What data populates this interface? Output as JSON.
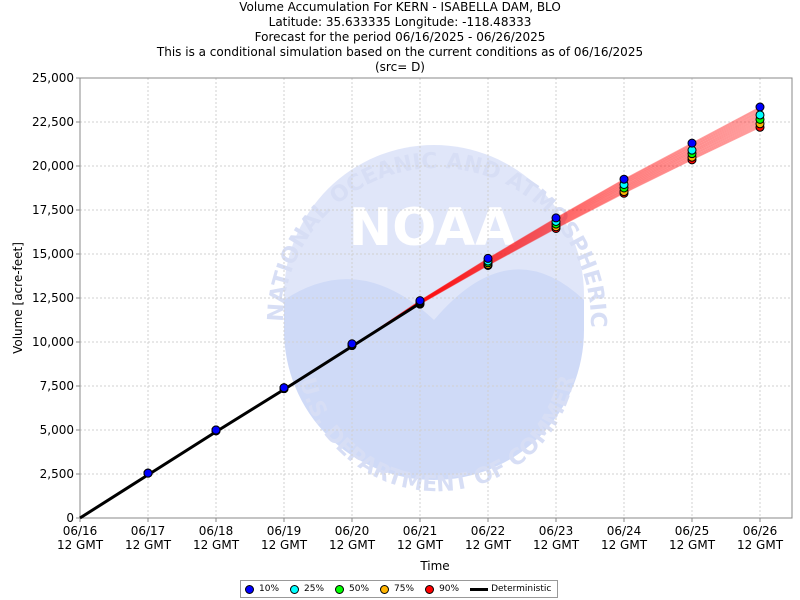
{
  "titles": {
    "line1": "Volume Accumulation For KERN - ISABELLA DAM, BLO",
    "line2": "Latitude: 35.633335 Longitude: -118.48333",
    "line3": "Forecast for the period 06/16/2025 - 06/26/2025",
    "line4": "This is a conditional simulation based on the current conditions as of 06/16/2025",
    "line5": "(src= D)"
  },
  "watermark": {
    "center_text": "NOAA",
    "ring_top": "NATIONAL OCEANIC AND ATMOSPHERIC ADMINISTRATION",
    "ring_bottom": "U.S. DEPARTMENT OF COMMERCE"
  },
  "legend": [
    {
      "label": "10%",
      "color": "#0000ff",
      "kind": "dot"
    },
    {
      "label": "25%",
      "color": "#00ffff",
      "kind": "dot"
    },
    {
      "label": "50%",
      "color": "#00ff00",
      "kind": "dot"
    },
    {
      "label": "75%",
      "color": "#ffb400",
      "kind": "dot"
    },
    {
      "label": "90%",
      "color": "#ff0000",
      "kind": "dot"
    },
    {
      "label": "Deterministic",
      "color": "#000000",
      "kind": "line"
    }
  ],
  "chart_data": {
    "type": "line",
    "xlabel": "Time",
    "ylabel": "Volume [acre-feet]",
    "x_ticks": [
      {
        "date": "06/16",
        "time": "12 GMT"
      },
      {
        "date": "06/17",
        "time": "12 GMT"
      },
      {
        "date": "06/18",
        "time": "12 GMT"
      },
      {
        "date": "06/19",
        "time": "12 GMT"
      },
      {
        "date": "06/20",
        "time": "12 GMT"
      },
      {
        "date": "06/21",
        "time": "12 GMT"
      },
      {
        "date": "06/22",
        "time": "12 GMT"
      },
      {
        "date": "06/23",
        "time": "12 GMT"
      },
      {
        "date": "06/24",
        "time": "12 GMT"
      },
      {
        "date": "06/25",
        "time": "12 GMT"
      },
      {
        "date": "06/26",
        "time": "12 GMT"
      }
    ],
    "y_ticks": [
      "0",
      "2,500",
      "5,000",
      "7,500",
      "10,000",
      "12,500",
      "15,000",
      "17,500",
      "20,000",
      "22,500",
      "25,000"
    ],
    "ylim": [
      0,
      25000
    ],
    "grid": true,
    "legend_position": "bottom",
    "deterministic": {
      "name": "Deterministic",
      "x": [
        "06/16",
        "06/17",
        "06/18",
        "06/19",
        "06/20",
        "06/21"
      ],
      "values": [
        0,
        2450,
        4900,
        7300,
        9750,
        12200
      ]
    },
    "series": [
      {
        "name": "10%",
        "color": "#0000ff",
        "x": [
          "06/17",
          "06/18",
          "06/19",
          "06/20",
          "06/21",
          "06/22",
          "06/23",
          "06/24",
          "06/25",
          "06/26"
        ],
        "values": [
          2550,
          5000,
          7400,
          9900,
          12350,
          14750,
          17050,
          19250,
          21300,
          23350
        ]
      },
      {
        "name": "25%",
        "color": "#00ffff",
        "x": [
          "06/17",
          "06/18",
          "06/19",
          "06/20",
          "06/21",
          "06/22",
          "06/23",
          "06/24",
          "06/25",
          "06/26"
        ],
        "values": [
          2550,
          5000,
          7400,
          9850,
          12300,
          14600,
          16850,
          18950,
          20900,
          22900
        ]
      },
      {
        "name": "50%",
        "color": "#00ff00",
        "x": [
          "06/17",
          "06/18",
          "06/19",
          "06/20",
          "06/21",
          "06/22",
          "06/23",
          "06/24",
          "06/25",
          "06/26"
        ],
        "values": [
          2550,
          5000,
          7400,
          9850,
          12250,
          14500,
          16700,
          18750,
          20700,
          22650
        ]
      },
      {
        "name": "75%",
        "color": "#ffb400",
        "x": [
          "06/17",
          "06/18",
          "06/19",
          "06/20",
          "06/21",
          "06/22",
          "06/23",
          "06/24",
          "06/25",
          "06/26"
        ],
        "values": [
          2550,
          4950,
          7350,
          9800,
          12200,
          14400,
          16550,
          18550,
          20500,
          22400
        ]
      },
      {
        "name": "90%",
        "color": "#ff0000",
        "x": [
          "06/17",
          "06/18",
          "06/19",
          "06/20",
          "06/21",
          "06/22",
          "06/23",
          "06/24",
          "06/25",
          "06/26"
        ],
        "values": [
          2550,
          4950,
          7350,
          9800,
          12150,
          14350,
          16450,
          18450,
          20350,
          22200
        ]
      }
    ],
    "ensemble_trace_color": "#ff0000"
  }
}
